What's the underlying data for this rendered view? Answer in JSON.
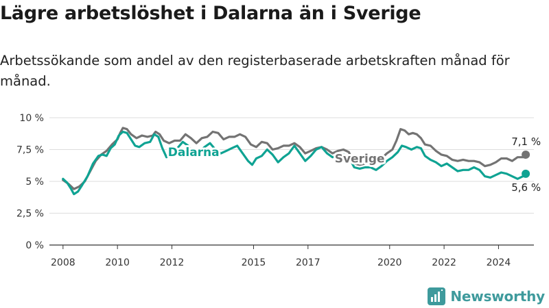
{
  "title": "Lägre arbetslöshet i Dalarna än i Sverige",
  "subtitle": "Arbetssökande som andel av den registerbaserade arbetskraften månad för månad.",
  "brand": "Newsworthy",
  "colors": {
    "dalarna": "#0fa393",
    "sverige": "#737373",
    "axis": "#333333",
    "grid": "#dddddd",
    "brand": "#3e9a9c"
  },
  "chart_data": {
    "type": "line",
    "title": "Lägre arbetslöshet i Dalarna än i Sverige",
    "subtitle": "Arbetssökande som andel av den registerbaserade arbetskraften månad för månad.",
    "xlim": [
      2007.5,
      2025.3
    ],
    "ylim": [
      0,
      10
    ],
    "y_ticks": [
      0,
      2.5,
      5,
      7.5,
      10
    ],
    "y_tick_labels": [
      "0 %",
      "2,5 %",
      "5 %",
      "7,5 %",
      "10 %"
    ],
    "x_ticks": [
      2008,
      2010,
      2012,
      2015,
      2017,
      2020,
      2022,
      2024
    ],
    "x_tick_labels": [
      "2008",
      "2010",
      "2012",
      "2015",
      "2017",
      "2020",
      "2022",
      "2024"
    ],
    "grid": true,
    "legend": "inline",
    "series": [
      {
        "name": "Sverige",
        "label_at": [
          2018.9,
          6.8
        ],
        "end_label": "7,1 %",
        "points": [
          [
            2008.0,
            5.1
          ],
          [
            2008.2,
            4.8
          ],
          [
            2008.4,
            4.4
          ],
          [
            2008.6,
            4.6
          ],
          [
            2008.8,
            5.0
          ],
          [
            2009.0,
            5.8
          ],
          [
            2009.2,
            6.6
          ],
          [
            2009.4,
            7.1
          ],
          [
            2009.6,
            7.4
          ],
          [
            2009.8,
            7.9
          ],
          [
            2010.0,
            8.3
          ],
          [
            2010.1,
            8.8
          ],
          [
            2010.2,
            9.2
          ],
          [
            2010.35,
            9.1
          ],
          [
            2010.5,
            8.7
          ],
          [
            2010.7,
            8.4
          ],
          [
            2010.9,
            8.6
          ],
          [
            2011.1,
            8.5
          ],
          [
            2011.3,
            8.6
          ],
          [
            2011.4,
            8.9
          ],
          [
            2011.55,
            8.7
          ],
          [
            2011.7,
            8.2
          ],
          [
            2011.9,
            8.0
          ],
          [
            2012.1,
            8.2
          ],
          [
            2012.3,
            8.2
          ],
          [
            2012.5,
            8.7
          ],
          [
            2012.7,
            8.4
          ],
          [
            2012.9,
            8.0
          ],
          [
            2013.1,
            8.4
          ],
          [
            2013.3,
            8.5
          ],
          [
            2013.5,
            8.9
          ],
          [
            2013.7,
            8.8
          ],
          [
            2013.9,
            8.3
          ],
          [
            2014.1,
            8.5
          ],
          [
            2014.3,
            8.5
          ],
          [
            2014.5,
            8.7
          ],
          [
            2014.7,
            8.5
          ],
          [
            2014.9,
            7.9
          ],
          [
            2015.1,
            7.7
          ],
          [
            2015.3,
            8.1
          ],
          [
            2015.5,
            8.0
          ],
          [
            2015.7,
            7.5
          ],
          [
            2015.9,
            7.6
          ],
          [
            2016.1,
            7.8
          ],
          [
            2016.3,
            7.8
          ],
          [
            2016.5,
            8.0
          ],
          [
            2016.7,
            7.7
          ],
          [
            2016.9,
            7.2
          ],
          [
            2017.1,
            7.4
          ],
          [
            2017.3,
            7.6
          ],
          [
            2017.5,
            7.7
          ],
          [
            2017.7,
            7.5
          ],
          [
            2017.9,
            7.2
          ],
          [
            2018.1,
            7.4
          ],
          [
            2018.3,
            7.5
          ],
          [
            2018.5,
            7.3
          ],
          [
            2018.7,
            6.4
          ],
          [
            2018.9,
            6.3
          ],
          [
            2019.1,
            6.4
          ],
          [
            2019.3,
            6.5
          ],
          [
            2019.5,
            6.6
          ],
          [
            2019.7,
            6.8
          ],
          [
            2019.9,
            7.2
          ],
          [
            2020.1,
            7.5
          ],
          [
            2020.25,
            8.2
          ],
          [
            2020.4,
            9.1
          ],
          [
            2020.55,
            9.0
          ],
          [
            2020.7,
            8.7
          ],
          [
            2020.85,
            8.8
          ],
          [
            2021.0,
            8.7
          ],
          [
            2021.15,
            8.4
          ],
          [
            2021.3,
            7.9
          ],
          [
            2021.5,
            7.8
          ],
          [
            2021.7,
            7.4
          ],
          [
            2021.9,
            7.1
          ],
          [
            2022.1,
            7.0
          ],
          [
            2022.3,
            6.7
          ],
          [
            2022.5,
            6.6
          ],
          [
            2022.7,
            6.7
          ],
          [
            2022.9,
            6.6
          ],
          [
            2023.1,
            6.6
          ],
          [
            2023.3,
            6.5
          ],
          [
            2023.5,
            6.2
          ],
          [
            2023.7,
            6.3
          ],
          [
            2023.9,
            6.5
          ],
          [
            2024.1,
            6.8
          ],
          [
            2024.3,
            6.8
          ],
          [
            2024.5,
            6.6
          ],
          [
            2024.7,
            6.9
          ],
          [
            2024.9,
            6.9
          ],
          [
            2025.0,
            7.1
          ]
        ]
      },
      {
        "name": "Dalarna",
        "label_at": [
          2012.8,
          7.3
        ],
        "end_label": "5,6 %",
        "points": [
          [
            2008.0,
            5.2
          ],
          [
            2008.15,
            4.9
          ],
          [
            2008.3,
            4.4
          ],
          [
            2008.4,
            4.0
          ],
          [
            2008.55,
            4.2
          ],
          [
            2008.7,
            4.7
          ],
          [
            2008.9,
            5.4
          ],
          [
            2009.1,
            6.4
          ],
          [
            2009.3,
            7.0
          ],
          [
            2009.45,
            7.1
          ],
          [
            2009.6,
            7.0
          ],
          [
            2009.75,
            7.6
          ],
          [
            2009.9,
            7.9
          ],
          [
            2010.05,
            8.6
          ],
          [
            2010.2,
            8.9
          ],
          [
            2010.35,
            8.8
          ],
          [
            2010.5,
            8.3
          ],
          [
            2010.65,
            7.8
          ],
          [
            2010.8,
            7.7
          ],
          [
            2011.0,
            8.0
          ],
          [
            2011.2,
            8.1
          ],
          [
            2011.35,
            8.7
          ],
          [
            2011.5,
            8.5
          ],
          [
            2011.65,
            7.6
          ],
          [
            2011.8,
            6.9
          ],
          [
            2012.0,
            7.2
          ],
          [
            2012.2,
            7.6
          ],
          [
            2012.4,
            8.1
          ],
          [
            2012.6,
            7.8
          ],
          [
            2012.8,
            7.2
          ],
          [
            2013.0,
            7.3
          ],
          [
            2013.2,
            7.7
          ],
          [
            2013.4,
            8.0
          ],
          [
            2013.6,
            7.5
          ],
          [
            2013.8,
            7.2
          ],
          [
            2014.0,
            7.4
          ],
          [
            2014.2,
            7.6
          ],
          [
            2014.4,
            7.8
          ],
          [
            2014.6,
            7.2
          ],
          [
            2014.8,
            6.6
          ],
          [
            2014.95,
            6.3
          ],
          [
            2015.1,
            6.8
          ],
          [
            2015.3,
            7.0
          ],
          [
            2015.5,
            7.5
          ],
          [
            2015.7,
            7.1
          ],
          [
            2015.9,
            6.5
          ],
          [
            2016.1,
            6.9
          ],
          [
            2016.3,
            7.2
          ],
          [
            2016.5,
            7.8
          ],
          [
            2016.7,
            7.2
          ],
          [
            2016.9,
            6.6
          ],
          [
            2017.1,
            7.0
          ],
          [
            2017.3,
            7.5
          ],
          [
            2017.5,
            7.7
          ],
          [
            2017.7,
            7.2
          ],
          [
            2017.9,
            6.9
          ],
          [
            2018.1,
            7.0
          ],
          [
            2018.3,
            7.1
          ],
          [
            2018.5,
            6.9
          ],
          [
            2018.7,
            6.1
          ],
          [
            2018.9,
            6.0
          ],
          [
            2019.1,
            6.1
          ],
          [
            2019.3,
            6.1
          ],
          [
            2019.5,
            5.9
          ],
          [
            2019.7,
            6.2
          ],
          [
            2019.9,
            6.6
          ],
          [
            2020.1,
            6.9
          ],
          [
            2020.3,
            7.3
          ],
          [
            2020.45,
            7.8
          ],
          [
            2020.6,
            7.7
          ],
          [
            2020.8,
            7.5
          ],
          [
            2021.0,
            7.7
          ],
          [
            2021.15,
            7.6
          ],
          [
            2021.3,
            7.0
          ],
          [
            2021.5,
            6.7
          ],
          [
            2021.7,
            6.5
          ],
          [
            2021.9,
            6.2
          ],
          [
            2022.1,
            6.4
          ],
          [
            2022.3,
            6.1
          ],
          [
            2022.5,
            5.8
          ],
          [
            2022.7,
            5.9
          ],
          [
            2022.9,
            5.9
          ],
          [
            2023.1,
            6.1
          ],
          [
            2023.3,
            5.9
          ],
          [
            2023.5,
            5.4
          ],
          [
            2023.7,
            5.3
          ],
          [
            2023.9,
            5.5
          ],
          [
            2024.1,
            5.7
          ],
          [
            2024.3,
            5.6
          ],
          [
            2024.5,
            5.4
          ],
          [
            2024.7,
            5.2
          ],
          [
            2024.9,
            5.4
          ],
          [
            2025.0,
            5.6
          ]
        ]
      }
    ]
  }
}
